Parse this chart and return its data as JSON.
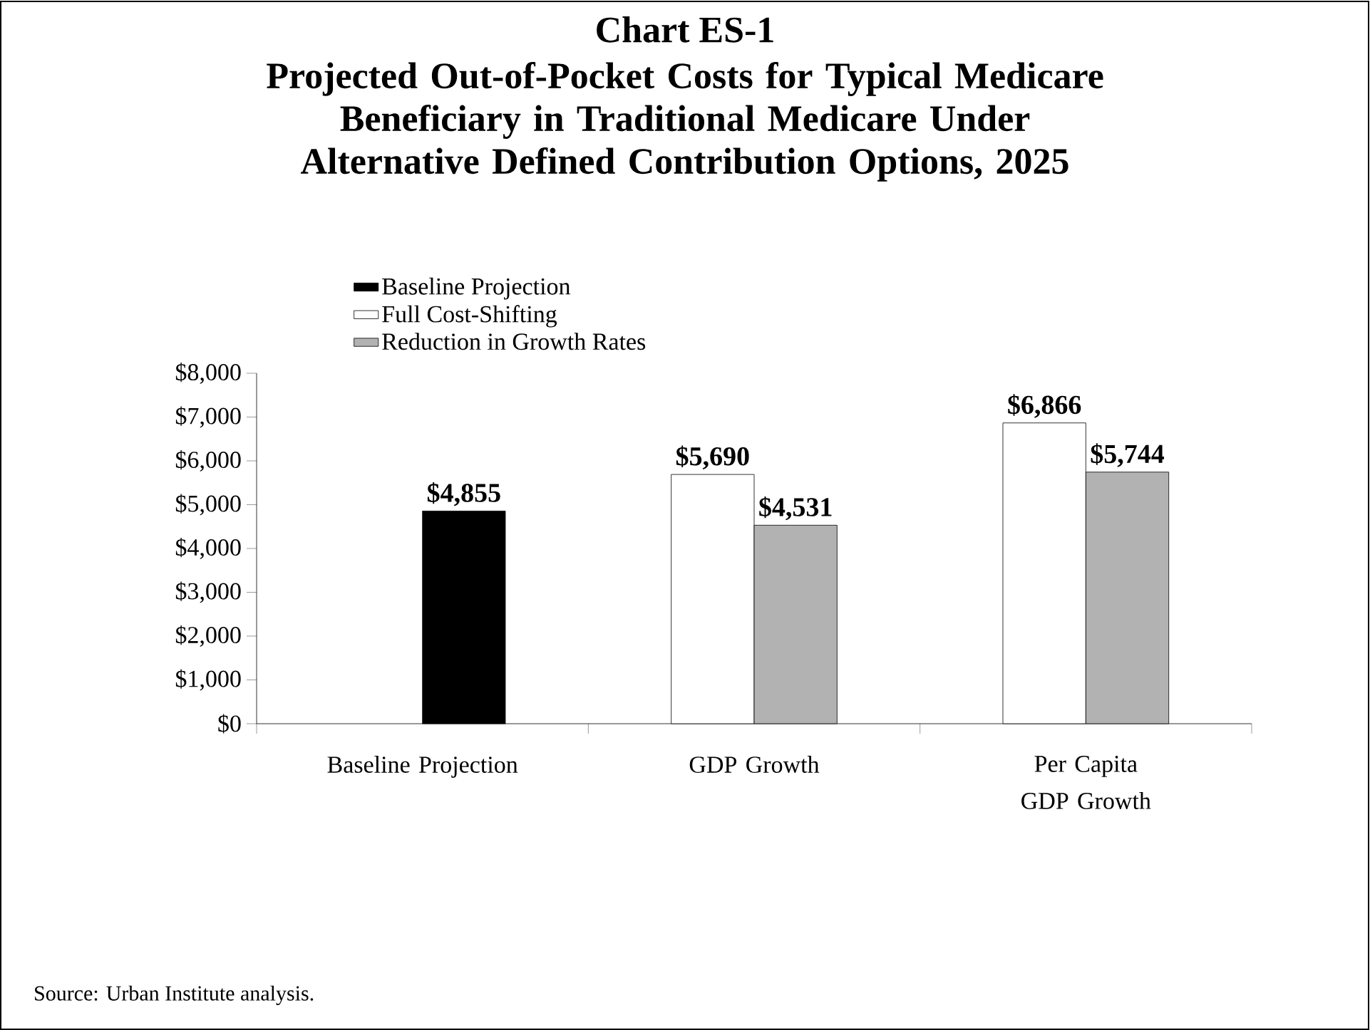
{
  "chart_data": {
    "type": "bar",
    "title": "Chart ES-1",
    "subtitle": "Projected Out-of-Pocket Costs for Typical Medicare Beneficiary in Traditional Medicare Under Alternative Defined Contribution Options, 2025",
    "categories": [
      "Baseline Projection",
      "GDP Growth",
      "Per Capita GDP Growth"
    ],
    "series": [
      {
        "name": "Baseline Projection",
        "color": "#000000",
        "values": [
          4855,
          null,
          null
        ],
        "value_labels": [
          "$4,855",
          null,
          null
        ]
      },
      {
        "name": "Full Cost-Shifting",
        "color": "#ffffff",
        "values": [
          null,
          5690,
          6866
        ],
        "value_labels": [
          null,
          "$5,690",
          "$6,866"
        ]
      },
      {
        "name": "Reduction in Growth Rates",
        "color": "#b2b2b2",
        "values": [
          null,
          4531,
          5744
        ],
        "value_labels": [
          null,
          "$4,531",
          "$5,744"
        ]
      }
    ],
    "ylim": [
      0,
      8000
    ],
    "yticks": [
      {
        "value": 0,
        "label": "$0"
      },
      {
        "value": 1000,
        "label": "$1,000"
      },
      {
        "value": 2000,
        "label": "$2,000"
      },
      {
        "value": 3000,
        "label": "$3,000"
      },
      {
        "value": 4000,
        "label": "$4,000"
      },
      {
        "value": 5000,
        "label": "$5,000"
      },
      {
        "value": 6000,
        "label": "$6,000"
      },
      {
        "value": 7000,
        "label": "$7,000"
      },
      {
        "value": 8000,
        "label": "$8,000"
      }
    ],
    "legend": "top left",
    "annotations": [
      "Source: Urban Institute analysis."
    ]
  }
}
